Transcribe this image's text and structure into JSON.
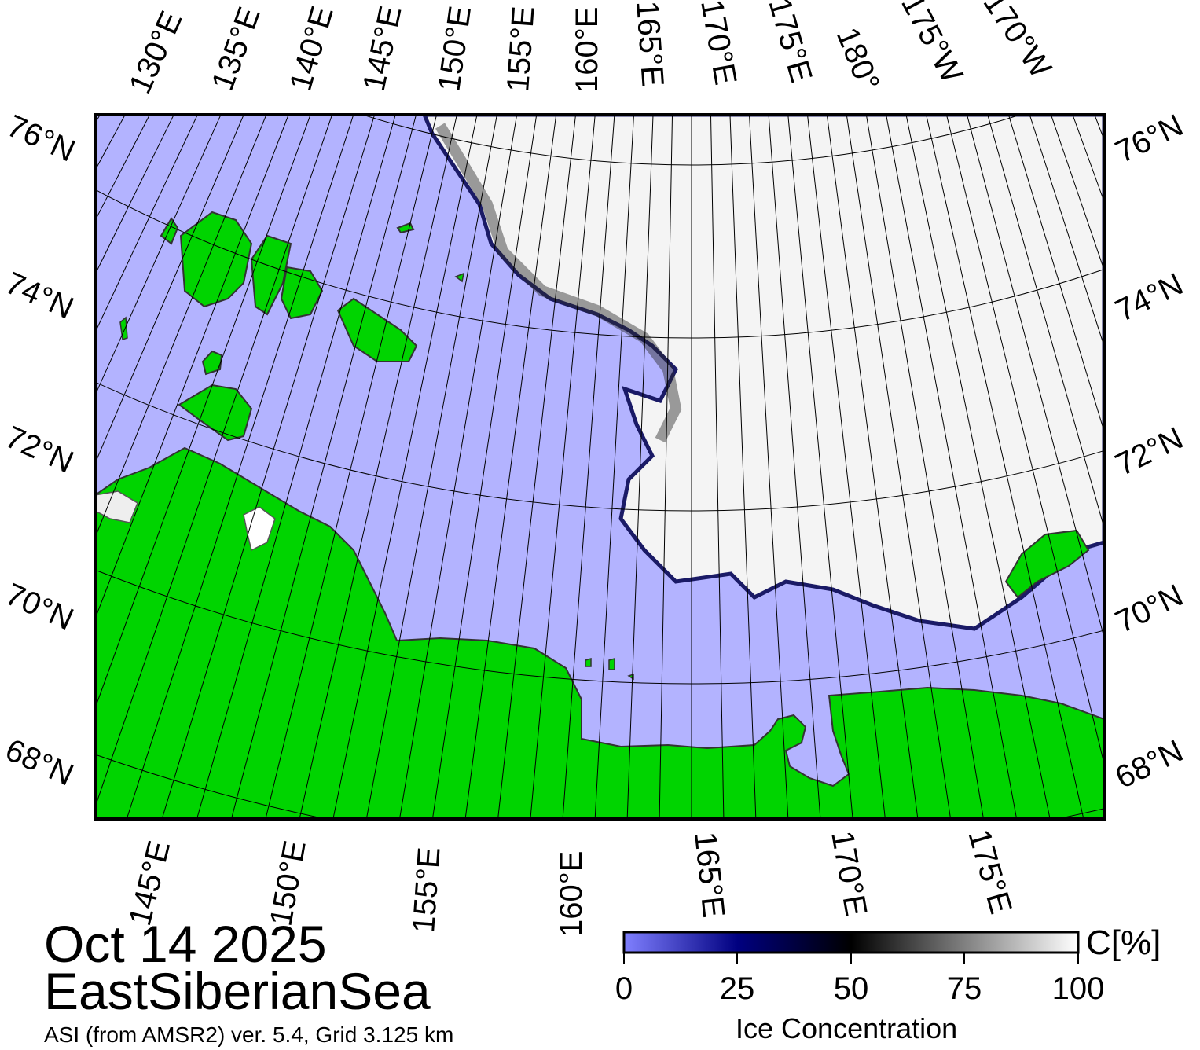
{
  "map": {
    "date": "Oct 14 2025",
    "region": "EastSiberianSea",
    "source": "ASI (from AMSR2) ver. 5.4,  Grid 3.125 km",
    "colors": {
      "ocean": "#b3b3ff",
      "land": "#00d400",
      "ice_high": "#ffffff",
      "ice_low": "#000080",
      "frame": "#000000",
      "graticule": "#000000"
    },
    "top_lon_labels": [
      "130°E",
      "135°E",
      "140°E",
      "145°E",
      "150°E",
      "155°E",
      "160°E",
      "165°E",
      "170°E",
      "175°E",
      "180°",
      "175°W",
      "170°W"
    ],
    "bottom_lon_labels": [
      "145°E",
      "150°E",
      "155°E",
      "160°E",
      "165°E",
      "170°E",
      "175°E"
    ],
    "left_lat_labels": [
      "76°N",
      "74°N",
      "72°N",
      "70°N",
      "68°N"
    ],
    "right_lat_labels": [
      "76°N",
      "74°N",
      "72°N",
      "70°N",
      "68°N"
    ]
  },
  "colorbar": {
    "title": "Ice Concentration",
    "unit": "C[%]",
    "ticks": [
      "0",
      "25",
      "50",
      "75",
      "100"
    ],
    "range": [
      0,
      100
    ]
  }
}
